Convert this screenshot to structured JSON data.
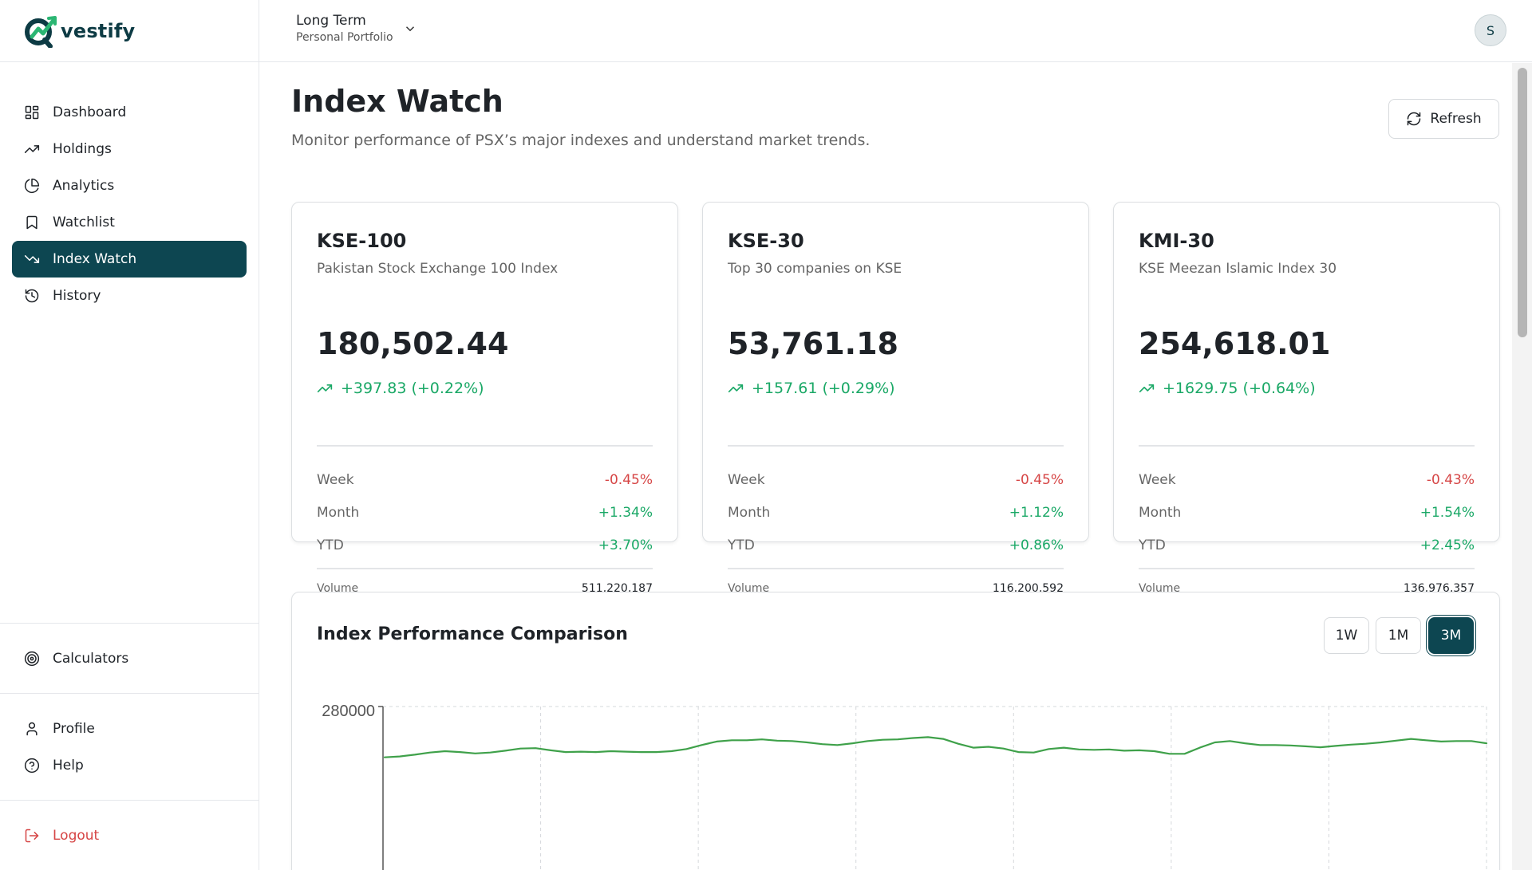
{
  "brand": {
    "name": "vestify"
  },
  "nav": [
    {
      "label": "Dashboard",
      "icon": "dashboard-icon"
    },
    {
      "label": "Holdings",
      "icon": "trending-up-icon"
    },
    {
      "label": "Analytics",
      "icon": "pie-chart-icon"
    },
    {
      "label": "Watchlist",
      "icon": "bookmark-icon"
    },
    {
      "label": "Index Watch",
      "icon": "trending-down-icon",
      "active": true
    },
    {
      "label": "History",
      "icon": "history-icon"
    }
  ],
  "nav_tools": {
    "calculators": "Calculators",
    "profile": "Profile",
    "help": "Help",
    "logout": "Logout"
  },
  "portfolio": {
    "name": "Long Term",
    "type": "Personal Portfolio"
  },
  "user": {
    "initial": "S"
  },
  "page": {
    "title": "Index Watch",
    "subtitle": "Monitor performance of PSX’s major indexes and understand market trends.",
    "refresh_label": "Refresh"
  },
  "indexes": [
    {
      "code": "KSE-100",
      "name": "Pakistan Stock Exchange 100 Index",
      "value": "180,502.44",
      "change": "+397.83 (+0.22%)",
      "week": "-0.45%",
      "month": "+1.34%",
      "ytd": "+3.70%",
      "volume": "511,220,187"
    },
    {
      "code": "KSE-30",
      "name": "Top 30 companies on KSE",
      "value": "53,761.18",
      "change": "+157.61 (+0.29%)",
      "week": "-0.45%",
      "month": "+1.12%",
      "ytd": "+0.86%",
      "volume": "116,200,592"
    },
    {
      "code": "KMI-30",
      "name": "KSE Meezan Islamic Index 30",
      "value": "254,618.01",
      "change": "+1629.75 (+0.64%)",
      "week": "-0.43%",
      "month": "+1.54%",
      "ytd": "+2.45%",
      "volume": "136,976,357"
    }
  ],
  "labels": {
    "week": "Week",
    "month": "Month",
    "ytd": "YTD",
    "volume": "Volume"
  },
  "comparison": {
    "title": "Index Performance Comparison",
    "ranges": [
      "1W",
      "1M",
      "3M"
    ],
    "active_range": "3M"
  },
  "chart_data": {
    "type": "line",
    "title": "Index Performance Comparison",
    "ytick_visible": "280000",
    "series_color": "#3fa14a",
    "grid": true,
    "values": [
      0.94,
      0.92,
      0.88,
      0.83,
      0.8,
      0.82,
      0.85,
      0.83,
      0.79,
      0.74,
      0.73,
      0.78,
      0.82,
      0.81,
      0.82,
      0.8,
      0.81,
      0.82,
      0.82,
      0.8,
      0.75,
      0.66,
      0.58,
      0.55,
      0.55,
      0.53,
      0.56,
      0.57,
      0.6,
      0.64,
      0.66,
      0.62,
      0.57,
      0.54,
      0.53,
      0.5,
      0.48,
      0.52,
      0.63,
      0.72,
      0.7,
      0.74,
      0.82,
      0.83,
      0.75,
      0.72,
      0.76,
      0.77,
      0.76,
      0.79,
      0.78,
      0.8,
      0.86,
      0.86,
      0.72,
      0.6,
      0.57,
      0.62,
      0.66,
      0.66,
      0.67,
      0.69,
      0.71,
      0.68,
      0.65,
      0.63,
      0.6,
      0.56,
      0.52,
      0.55,
      0.58,
      0.57,
      0.57,
      0.62
    ]
  },
  "colors": {
    "accent": "#0d4651",
    "positive": "#1aa866",
    "negative": "#d64545"
  }
}
